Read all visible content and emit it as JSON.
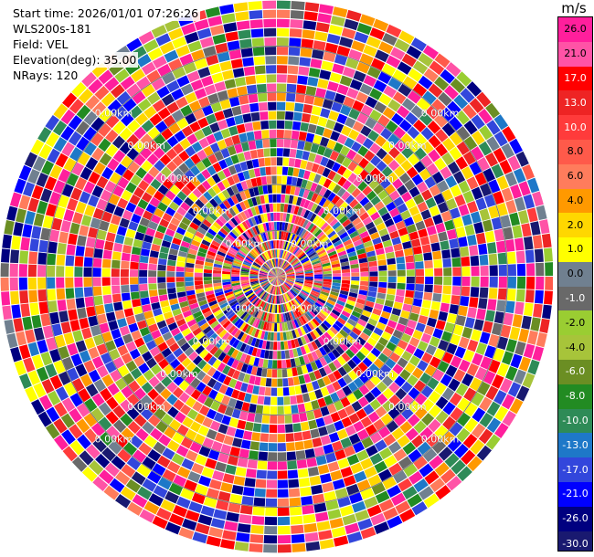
{
  "header": {
    "start_time": "Start time: 2026/01/01 07:26:26",
    "instrument": "WLS200s-181",
    "field": "Field: VEL",
    "elevation": "Elevation(deg): 35.00",
    "nrays": "NRays: 120"
  },
  "chart_data": {
    "type": "heatmap",
    "projection": "polar-ppi",
    "nrays": 120,
    "nrange_gates": 30,
    "max_range_km": 6.0,
    "range_rings_km": [
      1.0,
      2.0,
      3.0,
      4.0,
      5.0
    ],
    "ring_label": "0.00km",
    "ring_label_directions": [
      "upper-left",
      "upper-right",
      "lower-left",
      "lower-right"
    ],
    "colorbar": {
      "unit": "m/s",
      "tick_labels": [
        "26.0",
        "21.0",
        "17.0",
        "13.0",
        "10.0",
        "8.0",
        "6.0",
        "4.0",
        "2.0",
        "1.0",
        "0.0",
        "-1.0",
        "-2.0",
        "-4.0",
        "-6.0",
        "-8.0",
        "-10.0",
        "-13.0",
        "-17.0",
        "-21.0",
        "-26.0",
        "-30.0"
      ],
      "bins": [
        {
          "min": 26,
          "max": 30,
          "color": "#ff1f9c"
        },
        {
          "min": 21,
          "max": 26,
          "color": "#ff53a6"
        },
        {
          "min": 17,
          "max": 21,
          "color": "#ff0000"
        },
        {
          "min": 13,
          "max": 17,
          "color": "#ee2424"
        },
        {
          "min": 10,
          "max": 13,
          "color": "#ff3b3b"
        },
        {
          "min": 8,
          "max": 10,
          "color": "#ff5a4a"
        },
        {
          "min": 6,
          "max": 8,
          "color": "#ff7c5c"
        },
        {
          "min": 4,
          "max": 6,
          "color": "#ff9900"
        },
        {
          "min": 2,
          "max": 4,
          "color": "#ffd700"
        },
        {
          "min": 1,
          "max": 2,
          "color": "#ffff00"
        },
        {
          "min": 0,
          "max": 1,
          "color": "#708090"
        },
        {
          "min": -1,
          "max": 0,
          "color": "#696969"
        },
        {
          "min": -2,
          "max": -1,
          "color": "#9acd32"
        },
        {
          "min": -4,
          "max": -2,
          "color": "#a7c43a"
        },
        {
          "min": -6,
          "max": -4,
          "color": "#6b8e23"
        },
        {
          "min": -8,
          "max": -6,
          "color": "#228b22"
        },
        {
          "min": -10,
          "max": -8,
          "color": "#2e8b57"
        },
        {
          "min": -13,
          "max": -10,
          "color": "#1e78c8"
        },
        {
          "min": -17,
          "max": -13,
          "color": "#3246dc"
        },
        {
          "min": -21,
          "max": -17,
          "color": "#0000ff"
        },
        {
          "min": -26,
          "max": -21,
          "color": "#000080"
        },
        {
          "min": -30,
          "max": -26,
          "color": "#191970"
        }
      ]
    }
  }
}
